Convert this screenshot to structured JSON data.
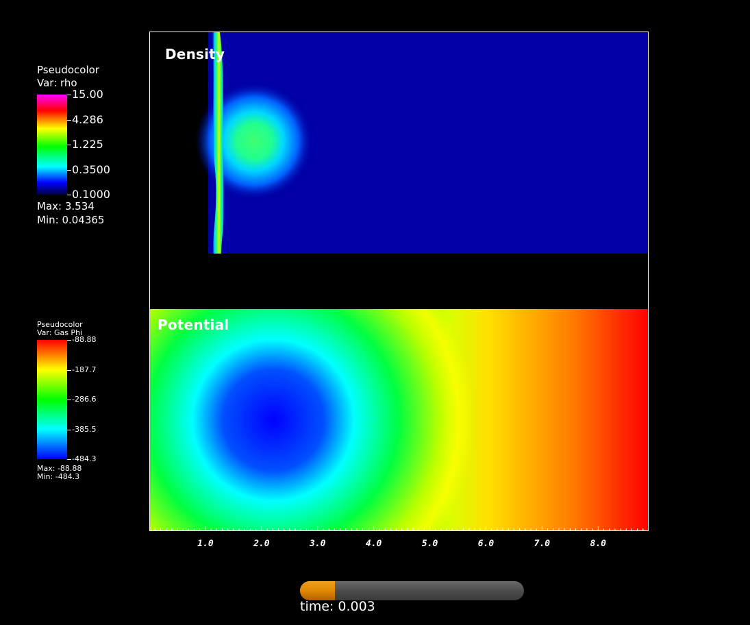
{
  "chart_data": [
    {
      "type": "heatmap",
      "title": "Density",
      "legend": {
        "plot_type": "Pseudocolor",
        "var_label": "Var: rho",
        "ticks": [
          "15.00",
          "4.286",
          "1.225",
          "0.3500",
          "0.1000"
        ],
        "max_label": "Max:  3.534",
        "min_label": "Min:  0.04365",
        "scale": "log",
        "range": [
          0.1,
          15.0
        ]
      },
      "features": {
        "shock_front_x": 1.2,
        "blob_center": [
          2.1,
          1.8
        ],
        "blob_radius": 0.95,
        "background_value": 0.04365
      },
      "extent": {
        "x": [
          0.0,
          8.9
        ],
        "y": [
          0.0,
          3.9
        ]
      }
    },
    {
      "type": "heatmap",
      "title": "Potential",
      "legend": {
        "plot_type": "Pseudocolor",
        "var_label": "Var: Gas Phi",
        "ticks": [
          "-88.88",
          "-187.7",
          "-286.6",
          "-385.5",
          "-484.3"
        ],
        "max_label": "Max: -88.88",
        "min_label": "Min: -484.3",
        "scale": "linear",
        "range": [
          -484.3,
          -88.88
        ]
      },
      "features": {
        "well_center": [
          2.1,
          1.9
        ],
        "min_value": -484.3,
        "max_value": -88.88
      },
      "extent": {
        "x": [
          0.0,
          8.9
        ],
        "y": [
          0.0,
          3.9
        ]
      }
    }
  ],
  "x_axis": {
    "ticks": [
      "1.0",
      "2.0",
      "3.0",
      "4.0",
      "5.0",
      "6.0",
      "7.0",
      "8.0"
    ],
    "range": [
      0.0,
      8.9
    ]
  },
  "time": {
    "label": "time: 0.003",
    "progress": 0.155
  },
  "colors": {
    "background": "#000000",
    "density_bg": "#0000a6",
    "potential_high": "#ff0000",
    "potential_low": "#0000ff",
    "slider_fill": "#e08800",
    "slider_track": "#555555"
  }
}
